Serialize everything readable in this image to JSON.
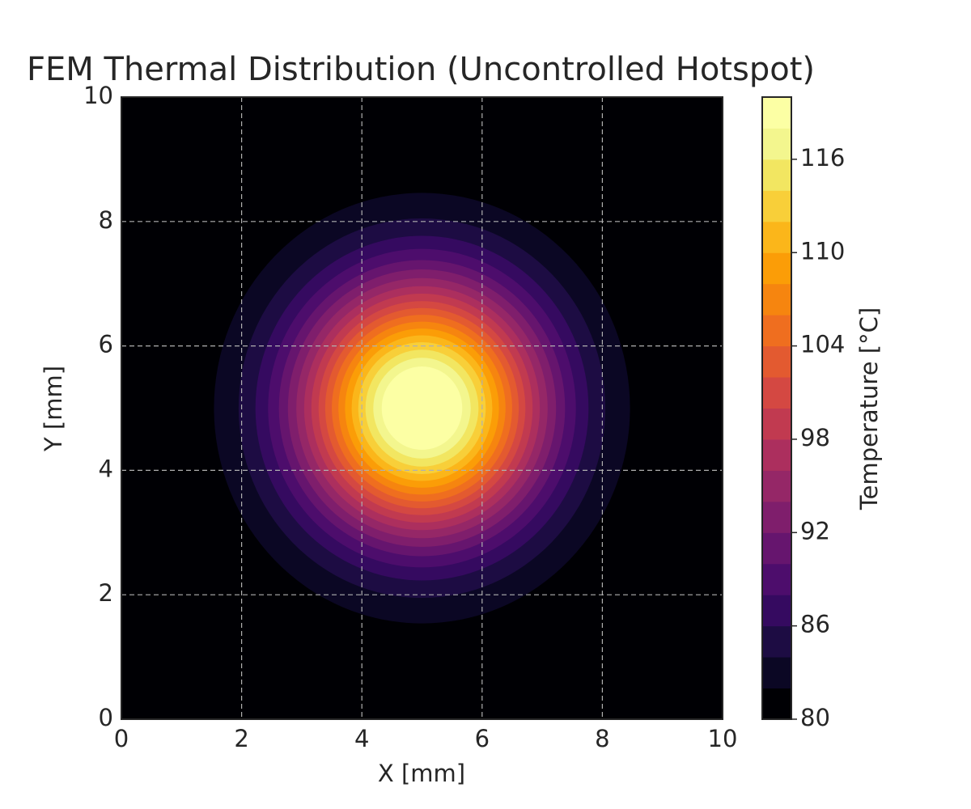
{
  "chart_data": {
    "type": "contourf",
    "title": "FEM Thermal Distribution (Uncontrolled Hotspot)",
    "x_label": "X [mm]",
    "y_label": "Y [mm]",
    "colorbar_label": "Temperature [°C]",
    "xlim": [
      0,
      10
    ],
    "ylim": [
      0,
      10
    ],
    "xticks": [
      0,
      2,
      4,
      6,
      8,
      10
    ],
    "yticks": [
      0,
      2,
      4,
      6,
      8,
      10
    ],
    "grid": true,
    "center": [
      5,
      5
    ],
    "levels": [
      80,
      82,
      84,
      86,
      88,
      90,
      92,
      94,
      96,
      98,
      100,
      102,
      104,
      106,
      108,
      110,
      112,
      114,
      116,
      118,
      120
    ],
    "radii": [
      3.46,
      3.05,
      2.77,
      2.56,
      2.38,
      2.23,
      2.09,
      1.96,
      1.84,
      1.72,
      1.61,
      1.5,
      1.39,
      1.28,
      1.17,
      1.06,
      0.94,
      0.81,
      0.67
    ],
    "colors": [
      "#000004",
      "#0b0724",
      "#1d0c43",
      "#350a60",
      "#4d0d6c",
      "#66156e",
      "#7f1e6c",
      "#952767",
      "#ac2f5e",
      "#c13a50",
      "#d44842",
      "#e35a30",
      "#ef6e1f",
      "#f6850f",
      "#fb9d07",
      "#fbb61a",
      "#f8cf39",
      "#f2e661",
      "#f3f68e",
      "#fcffa4"
    ],
    "clim": [
      80,
      120
    ],
    "cticks": [
      80,
      86,
      92,
      98,
      104,
      110,
      116
    ]
  }
}
